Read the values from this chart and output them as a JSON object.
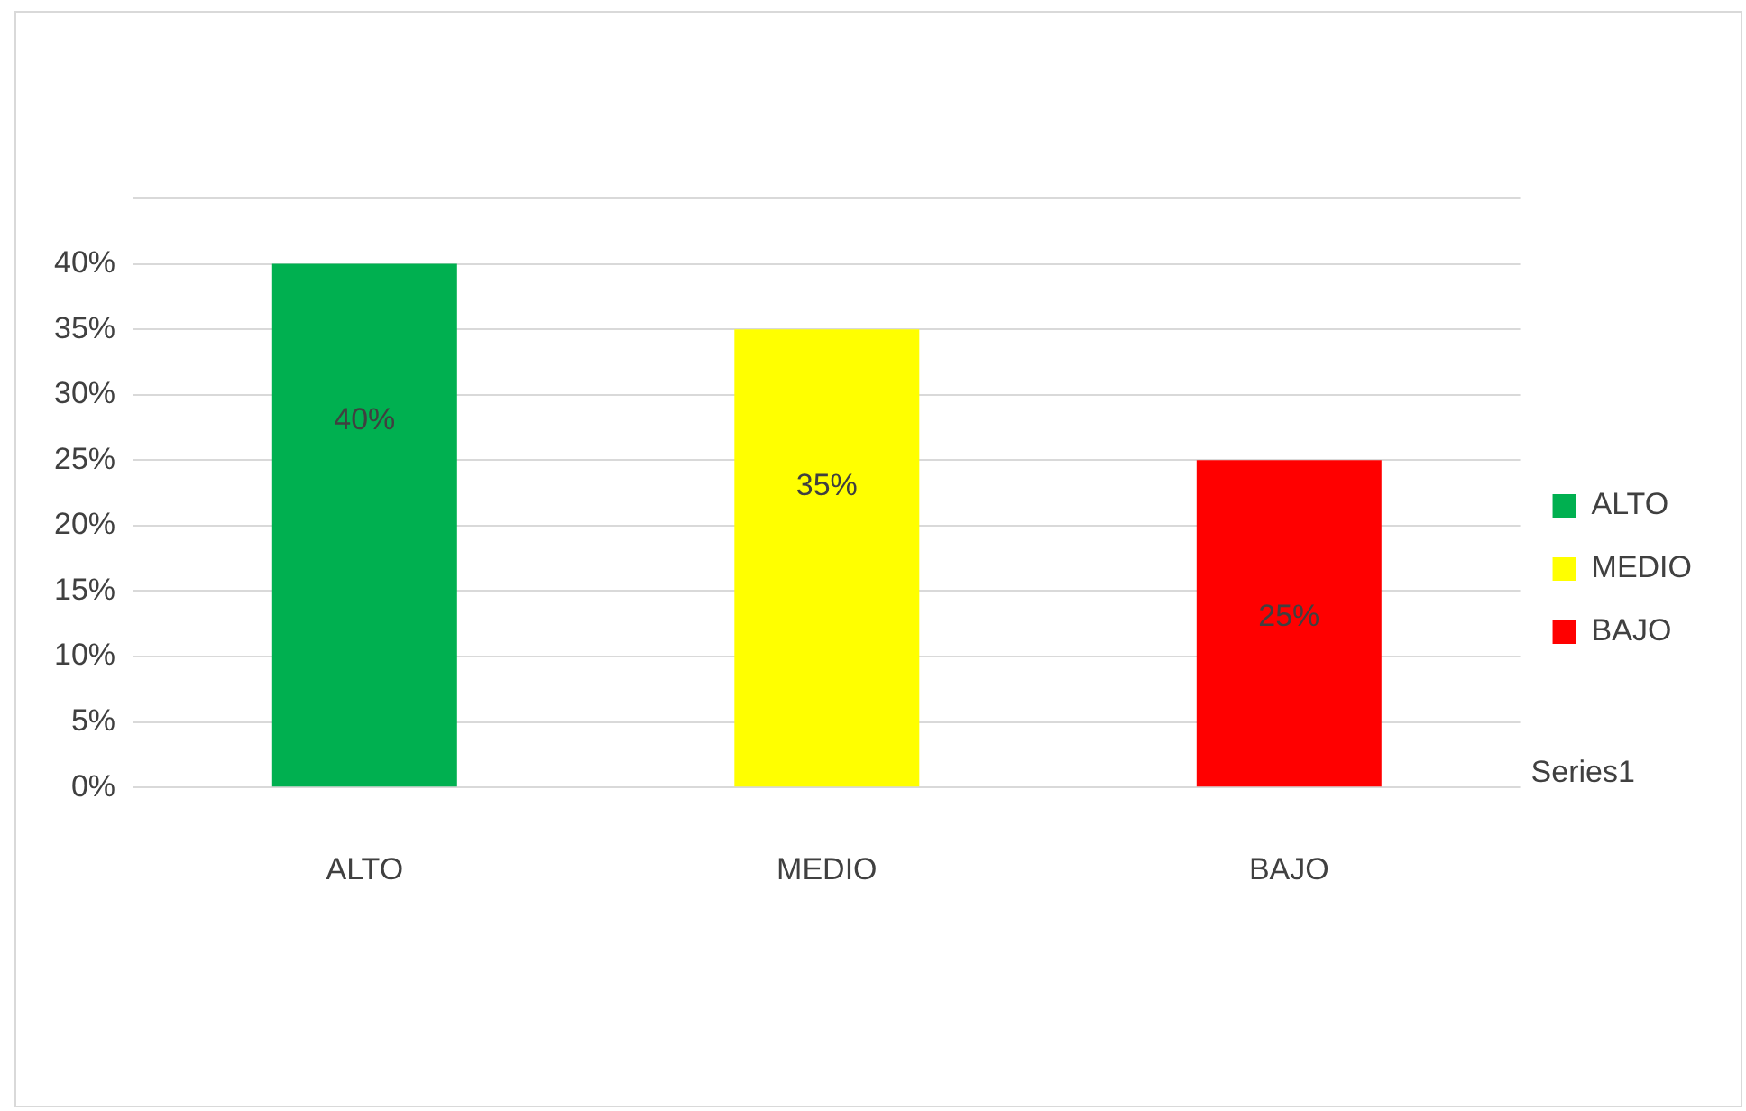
{
  "chart_data": {
    "type": "bar",
    "categories": [
      "ALTO",
      "MEDIO",
      "BAJO"
    ],
    "series": [
      {
        "name": "ALTO",
        "color": "#00b050",
        "values": [
          40,
          null,
          null
        ],
        "value_labels": [
          "40%",
          null,
          null
        ]
      },
      {
        "name": "MEDIO",
        "color": "#ffff00",
        "values": [
          null,
          35,
          null
        ],
        "value_labels": [
          null,
          "35%",
          null
        ]
      },
      {
        "name": "BAJO",
        "color": "#ff0000",
        "values": [
          null,
          null,
          25
        ],
        "value_labels": [
          null,
          null,
          "25%"
        ]
      }
    ],
    "ylim": [
      0,
      45
    ],
    "yticks": [
      {
        "value": 0,
        "label": "0%"
      },
      {
        "value": 5,
        "label": "5%"
      },
      {
        "value": 10,
        "label": "10%"
      },
      {
        "value": 15,
        "label": "15%"
      },
      {
        "value": 20,
        "label": "20%"
      },
      {
        "value": 25,
        "label": "25%"
      },
      {
        "value": 30,
        "label": "30%"
      },
      {
        "value": 35,
        "label": "35%"
      },
      {
        "value": 40,
        "label": "40%"
      },
      {
        "value": 45,
        "label": null
      }
    ],
    "grid": "y",
    "legend": "right",
    "annotations": [
      "Series1"
    ]
  }
}
